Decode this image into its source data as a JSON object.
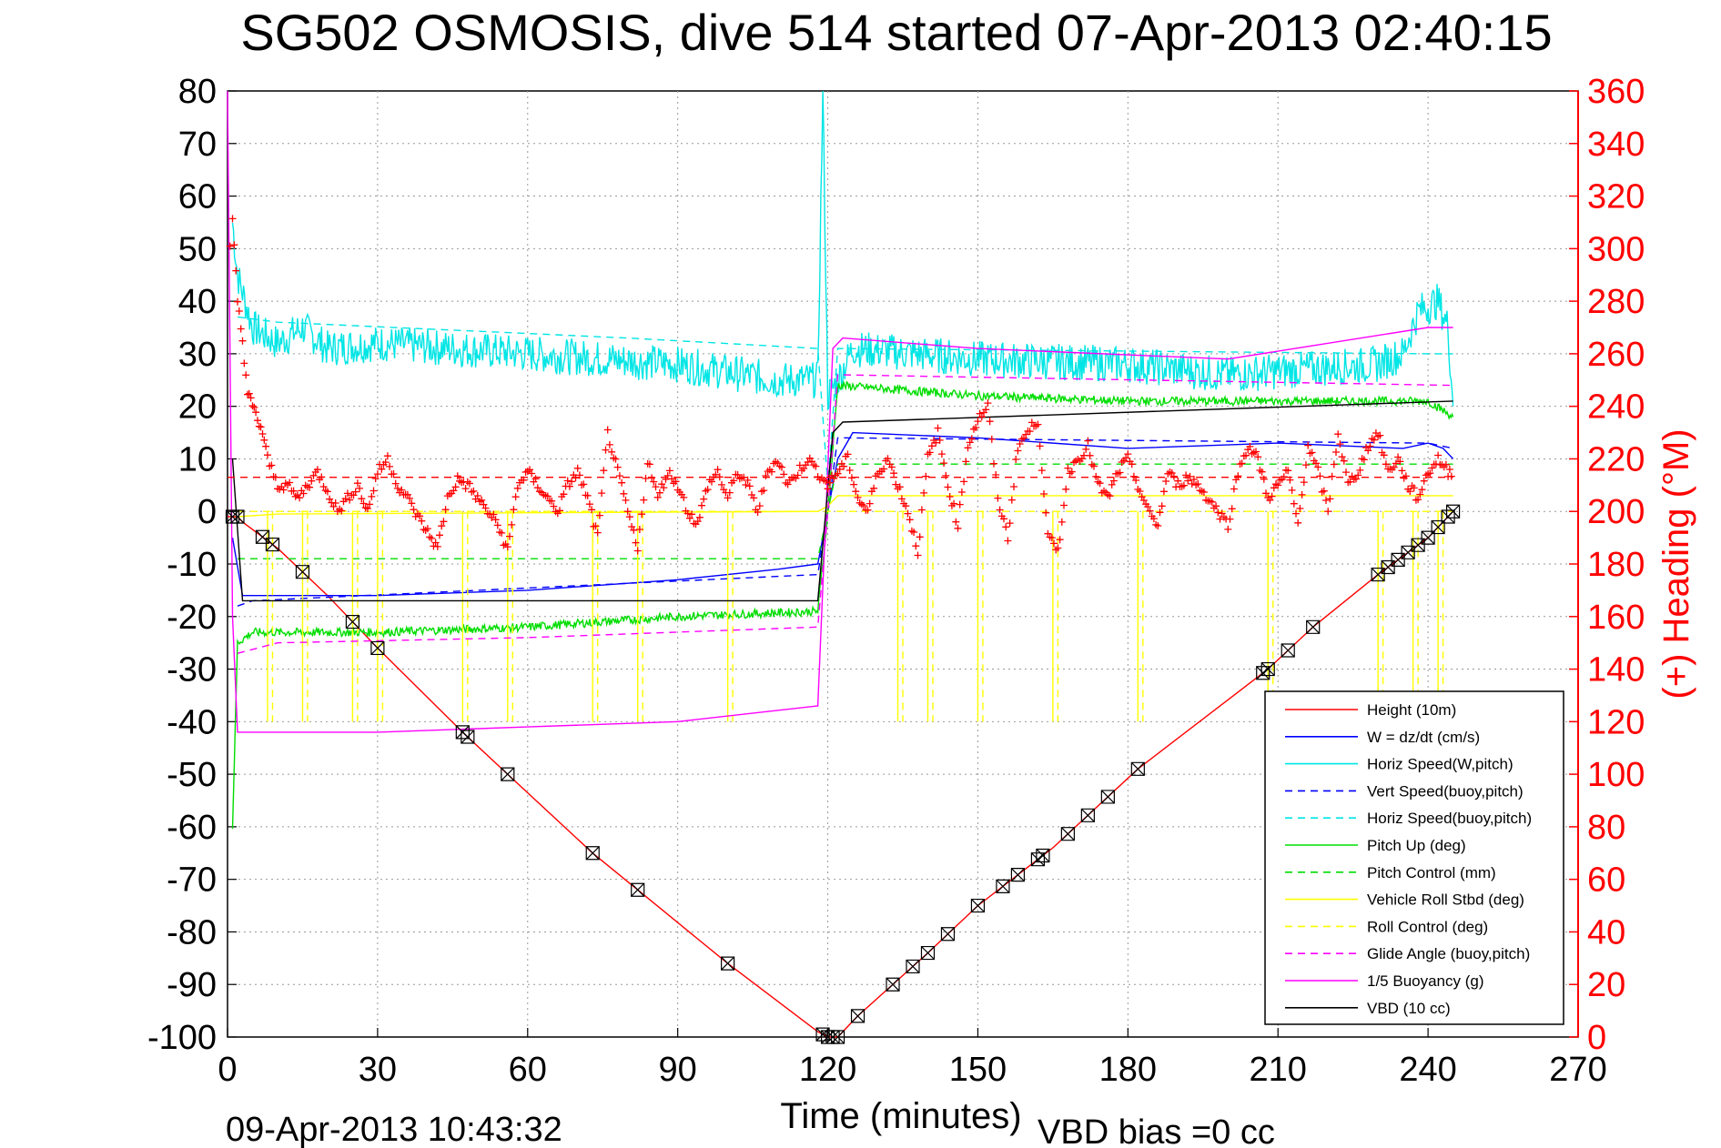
{
  "chart_data": {
    "type": "line",
    "title": "SG502 OSMOSIS, dive 514 started 07-Apr-2013 02:40:15",
    "xlabel": "Time (minutes)",
    "ylabel_right": "(+) Heading (°M)",
    "footer_timestamp": "09-Apr-2013 10:43:32",
    "footer_note": "VBD bias =0 cc",
    "xlim": [
      0,
      270
    ],
    "ylim_left": [
      -100,
      80
    ],
    "ylim_right": [
      0,
      360
    ],
    "xticks": [
      "0",
      "30",
      "60",
      "90",
      "120",
      "150",
      "180",
      "210",
      "240",
      "270"
    ],
    "yticks_left": [
      "-100",
      "-90",
      "-80",
      "-70",
      "-60",
      "-50",
      "-40",
      "-30",
      "-20",
      "-10",
      "0",
      "10",
      "20",
      "30",
      "40",
      "50",
      "60",
      "70",
      "80"
    ],
    "yticks_right": [
      "0",
      "20",
      "40",
      "60",
      "80",
      "100",
      "120",
      "140",
      "160",
      "180",
      "200",
      "220",
      "240",
      "260",
      "280",
      "300",
      "320",
      "340",
      "360"
    ],
    "grid": true,
    "legend_position": "bottom-right",
    "colors": {
      "height": "#ff0000",
      "w": "#0000ff",
      "horiz_w": "#00e5e5",
      "vert_buoy": "#0000ff",
      "horiz_buoy": "#00e5e5",
      "pitch": "#00dd00",
      "pitch_ctrl": "#00dd00",
      "roll": "#ffff00",
      "roll_ctrl": "#ffff00",
      "glide": "#ff00ff",
      "buoy": "#ff00ff",
      "vbd": "#000000",
      "heading": "#ff0000",
      "right_axis": "#ff0000"
    },
    "series": [
      {
        "name": "Height (10m)",
        "key": "height",
        "style": "solid",
        "x": [
          0,
          1,
          2,
          3,
          10,
          20,
          30,
          47,
          56,
          73,
          82,
          100,
          118,
          120,
          121,
          122,
          126,
          140,
          150,
          165,
          182,
          208,
          217,
          230,
          240,
          245
        ],
        "y": [
          -1,
          -1,
          -1,
          -2,
          -7,
          -16,
          -26,
          -42,
          -50,
          -65,
          -72,
          -86,
          -99,
          -100,
          -100,
          -100,
          -96,
          -84,
          -75,
          -64,
          -49,
          -30,
          -22,
          -12,
          -5,
          0
        ]
      },
      {
        "name": "W = dz/dt (cm/s)",
        "key": "w",
        "style": "solid",
        "x": [
          1,
          3,
          10,
          30,
          60,
          90,
          110,
          118,
          120,
          122,
          125,
          150,
          180,
          210,
          235,
          240,
          243,
          245
        ],
        "y": [
          -5,
          -16,
          -16,
          -16,
          -15,
          -13,
          -11,
          -10,
          0,
          10,
          15,
          14,
          12,
          13,
          12,
          13,
          12,
          10
        ]
      },
      {
        "name": "Horiz Speed(W,pitch)",
        "key": "horiz_w",
        "style": "solid",
        "x": [
          1,
          2,
          5,
          10,
          15,
          20,
          30,
          60,
          90,
          110,
          118,
          119,
          120,
          122,
          125,
          150,
          180,
          200,
          230,
          235,
          238,
          242,
          244,
          245
        ],
        "y": [
          55,
          45,
          35,
          32,
          35,
          31,
          32,
          30,
          28,
          25,
          25,
          80,
          22,
          25,
          31,
          29,
          28,
          26,
          28,
          30,
          38,
          40,
          35,
          20
        ],
        "jitter": 3.5
      },
      {
        "name": "Vert Speed(buoy,pitch)",
        "key": "vert_buoy",
        "style": "dashed",
        "x": [
          2,
          5,
          118,
          120,
          122,
          240,
          245
        ],
        "y": [
          -18,
          -17,
          -12,
          0,
          14,
          13,
          12
        ]
      },
      {
        "name": "Horiz Speed(buoy,pitch)",
        "key": "horiz_buoy",
        "style": "dashed",
        "x": [
          2,
          10,
          80,
          118,
          120,
          122,
          240,
          245
        ],
        "y": [
          37,
          36,
          33,
          31,
          5,
          31,
          30,
          30
        ]
      },
      {
        "name": "Pitch Up (deg)",
        "key": "pitch",
        "style": "solid",
        "x": [
          1,
          2,
          5,
          10,
          30,
          60,
          90,
          118,
          120,
          122,
          150,
          180,
          240,
          245
        ],
        "y": [
          -60,
          -25,
          -23,
          -23,
          -23,
          -22,
          -20,
          -19,
          0,
          24,
          22,
          21,
          21,
          18
        ],
        "jitter": 0.8
      },
      {
        "name": "Pitch Control (mm)",
        "key": "pitch_ctrl",
        "style": "dashed",
        "x": [
          2,
          118,
          120,
          122,
          245
        ],
        "y": [
          -9,
          -9,
          0,
          9,
          9
        ]
      },
      {
        "name": "Vehicle Roll Stbd (deg)",
        "key": "roll",
        "style": "solid",
        "x": [
          2,
          10,
          118,
          120,
          122,
          245
        ],
        "y": [
          -1,
          -0.5,
          0,
          1,
          3,
          3
        ],
        "spikes_x": [
          8,
          15,
          25,
          30,
          47,
          56,
          73,
          82,
          100,
          134,
          140,
          150,
          165,
          182,
          208,
          230,
          237,
          242
        ],
        "spikes_y": -40
      },
      {
        "name": "Roll Control (deg)",
        "key": "roll_ctrl",
        "style": "dashed",
        "x": [
          2,
          245
        ],
        "y": [
          0,
          0
        ],
        "spikes_x": [
          9,
          16,
          26,
          31,
          48,
          57,
          74,
          83,
          101,
          135,
          141,
          151,
          166,
          183,
          209,
          231,
          238,
          243
        ],
        "spikes_y": -40
      },
      {
        "name": "Glide Angle (buoy,pitch)",
        "key": "glide",
        "style": "dashed",
        "x": [
          2,
          10,
          60,
          118,
          120,
          122,
          245
        ],
        "y": [
          -27,
          -25,
          -24,
          -22,
          0,
          26,
          24
        ]
      },
      {
        "name": "1/5 Buoyancy (g)",
        "key": "buoy",
        "style": "solid",
        "x": [
          0,
          1,
          2,
          5,
          30,
          60,
          90,
          118,
          121,
          123,
          150,
          200,
          240,
          245
        ],
        "y": [
          80,
          -20,
          -42,
          -42,
          -42,
          -41,
          -40,
          -37,
          31,
          33,
          31,
          29,
          35,
          35
        ]
      },
      {
        "name": "VBD (10 cc)",
        "key": "vbd",
        "style": "solid",
        "x": [
          1,
          3,
          118,
          121,
          123,
          245
        ],
        "y": [
          10,
          -17,
          -17,
          15,
          17,
          21
        ]
      }
    ],
    "heading": {
      "name": "Heading",
      "axis": "right",
      "marker": "+",
      "mean_deg": 213,
      "x": [
        0.5,
        1,
        2,
        3,
        4,
        5,
        6,
        7,
        8,
        10,
        12,
        14,
        16,
        18,
        20,
        22,
        24,
        26,
        28,
        30,
        32,
        34,
        36,
        38,
        40,
        42,
        44,
        46,
        48,
        50,
        52,
        54,
        56,
        58,
        60,
        62,
        64,
        66,
        68,
        70,
        72,
        74,
        76,
        78,
        80,
        82,
        84,
        86,
        88,
        90,
        92,
        94,
        96,
        98,
        100,
        102,
        104,
        106,
        108,
        110,
        112,
        114,
        116,
        118,
        120,
        122,
        124,
        126,
        128,
        130,
        132,
        134,
        136,
        138,
        140,
        142,
        144,
        146,
        148,
        150,
        152,
        154,
        156,
        158,
        160,
        162,
        164,
        166,
        168,
        170,
        172,
        174,
        176,
        178,
        180,
        182,
        184,
        186,
        188,
        190,
        192,
        194,
        196,
        198,
        200,
        202,
        204,
        206,
        208,
        210,
        212,
        214,
        216,
        218,
        220,
        222,
        224,
        226,
        228,
        230,
        232,
        234,
        236,
        238,
        240,
        242,
        244,
        245
      ],
      "y": [
        300,
        310,
        280,
        265,
        245,
        240,
        235,
        230,
        220,
        210,
        210,
        205,
        210,
        215,
        208,
        200,
        205,
        210,
        200,
        215,
        220,
        210,
        205,
        198,
        192,
        186,
        205,
        212,
        210,
        205,
        200,
        195,
        185,
        210,
        215,
        210,
        205,
        200,
        210,
        215,
        205,
        190,
        230,
        215,
        200,
        185,
        220,
        205,
        215,
        210,
        200,
        195,
        210,
        215,
        205,
        215,
        210,
        200,
        215,
        220,
        210,
        215,
        220,
        215,
        210,
        215,
        220,
        205,
        200,
        215,
        220,
        210,
        200,
        185,
        220,
        230,
        210,
        195,
        225,
        235,
        240,
        205,
        190,
        225,
        230,
        235,
        190,
        185,
        215,
        220,
        225,
        210,
        205,
        215,
        220,
        210,
        200,
        195,
        215,
        210,
        213,
        210,
        205,
        200,
        195,
        215,
        225,
        220,
        205,
        210,
        215,
        195,
        225,
        215,
        200,
        230,
        210,
        215,
        225,
        230,
        215,
        220,
        210,
        205,
        215,
        220,
        215,
        215
      ]
    }
  },
  "legend": {
    "items": [
      {
        "label": "Height (10m)",
        "key": "height",
        "style": "solid"
      },
      {
        "label": "W = dz/dt (cm/s)",
        "key": "w",
        "style": "solid"
      },
      {
        "label": "Horiz Speed(W,pitch)",
        "key": "horiz_w",
        "style": "solid"
      },
      {
        "label": "Vert Speed(buoy,pitch)",
        "key": "vert_buoy",
        "style": "dashed"
      },
      {
        "label": "Horiz Speed(buoy,pitch)",
        "key": "horiz_buoy",
        "style": "dashed"
      },
      {
        "label": "Pitch Up (deg)",
        "key": "pitch",
        "style": "solid"
      },
      {
        "label": "Pitch Control (mm)",
        "key": "pitch_ctrl",
        "style": "dashed"
      },
      {
        "label": "Vehicle Roll Stbd (deg)",
        "key": "roll",
        "style": "solid"
      },
      {
        "label": "Roll Control (deg)",
        "key": "roll_ctrl",
        "style": "dashed"
      },
      {
        "label": "Glide Angle (buoy,pitch)",
        "key": "glide",
        "style": "dashed"
      },
      {
        "label": "1/5 Buoyancy (g)",
        "key": "buoy",
        "style": "solid"
      },
      {
        "label": "VBD (10 cc)",
        "key": "vbd",
        "style": "solid"
      }
    ]
  },
  "markers": {
    "symbol": "⊠",
    "x": [
      1,
      2,
      7,
      9,
      15,
      25,
      30,
      47,
      48,
      56,
      73,
      82,
      100,
      119,
      120,
      121,
      122,
      126,
      133,
      137,
      140,
      144,
      150,
      155,
      158,
      162,
      163,
      168,
      172,
      176,
      182,
      207,
      208,
      212,
      217,
      230,
      232,
      234,
      236,
      238,
      240,
      242,
      244,
      245
    ]
  }
}
